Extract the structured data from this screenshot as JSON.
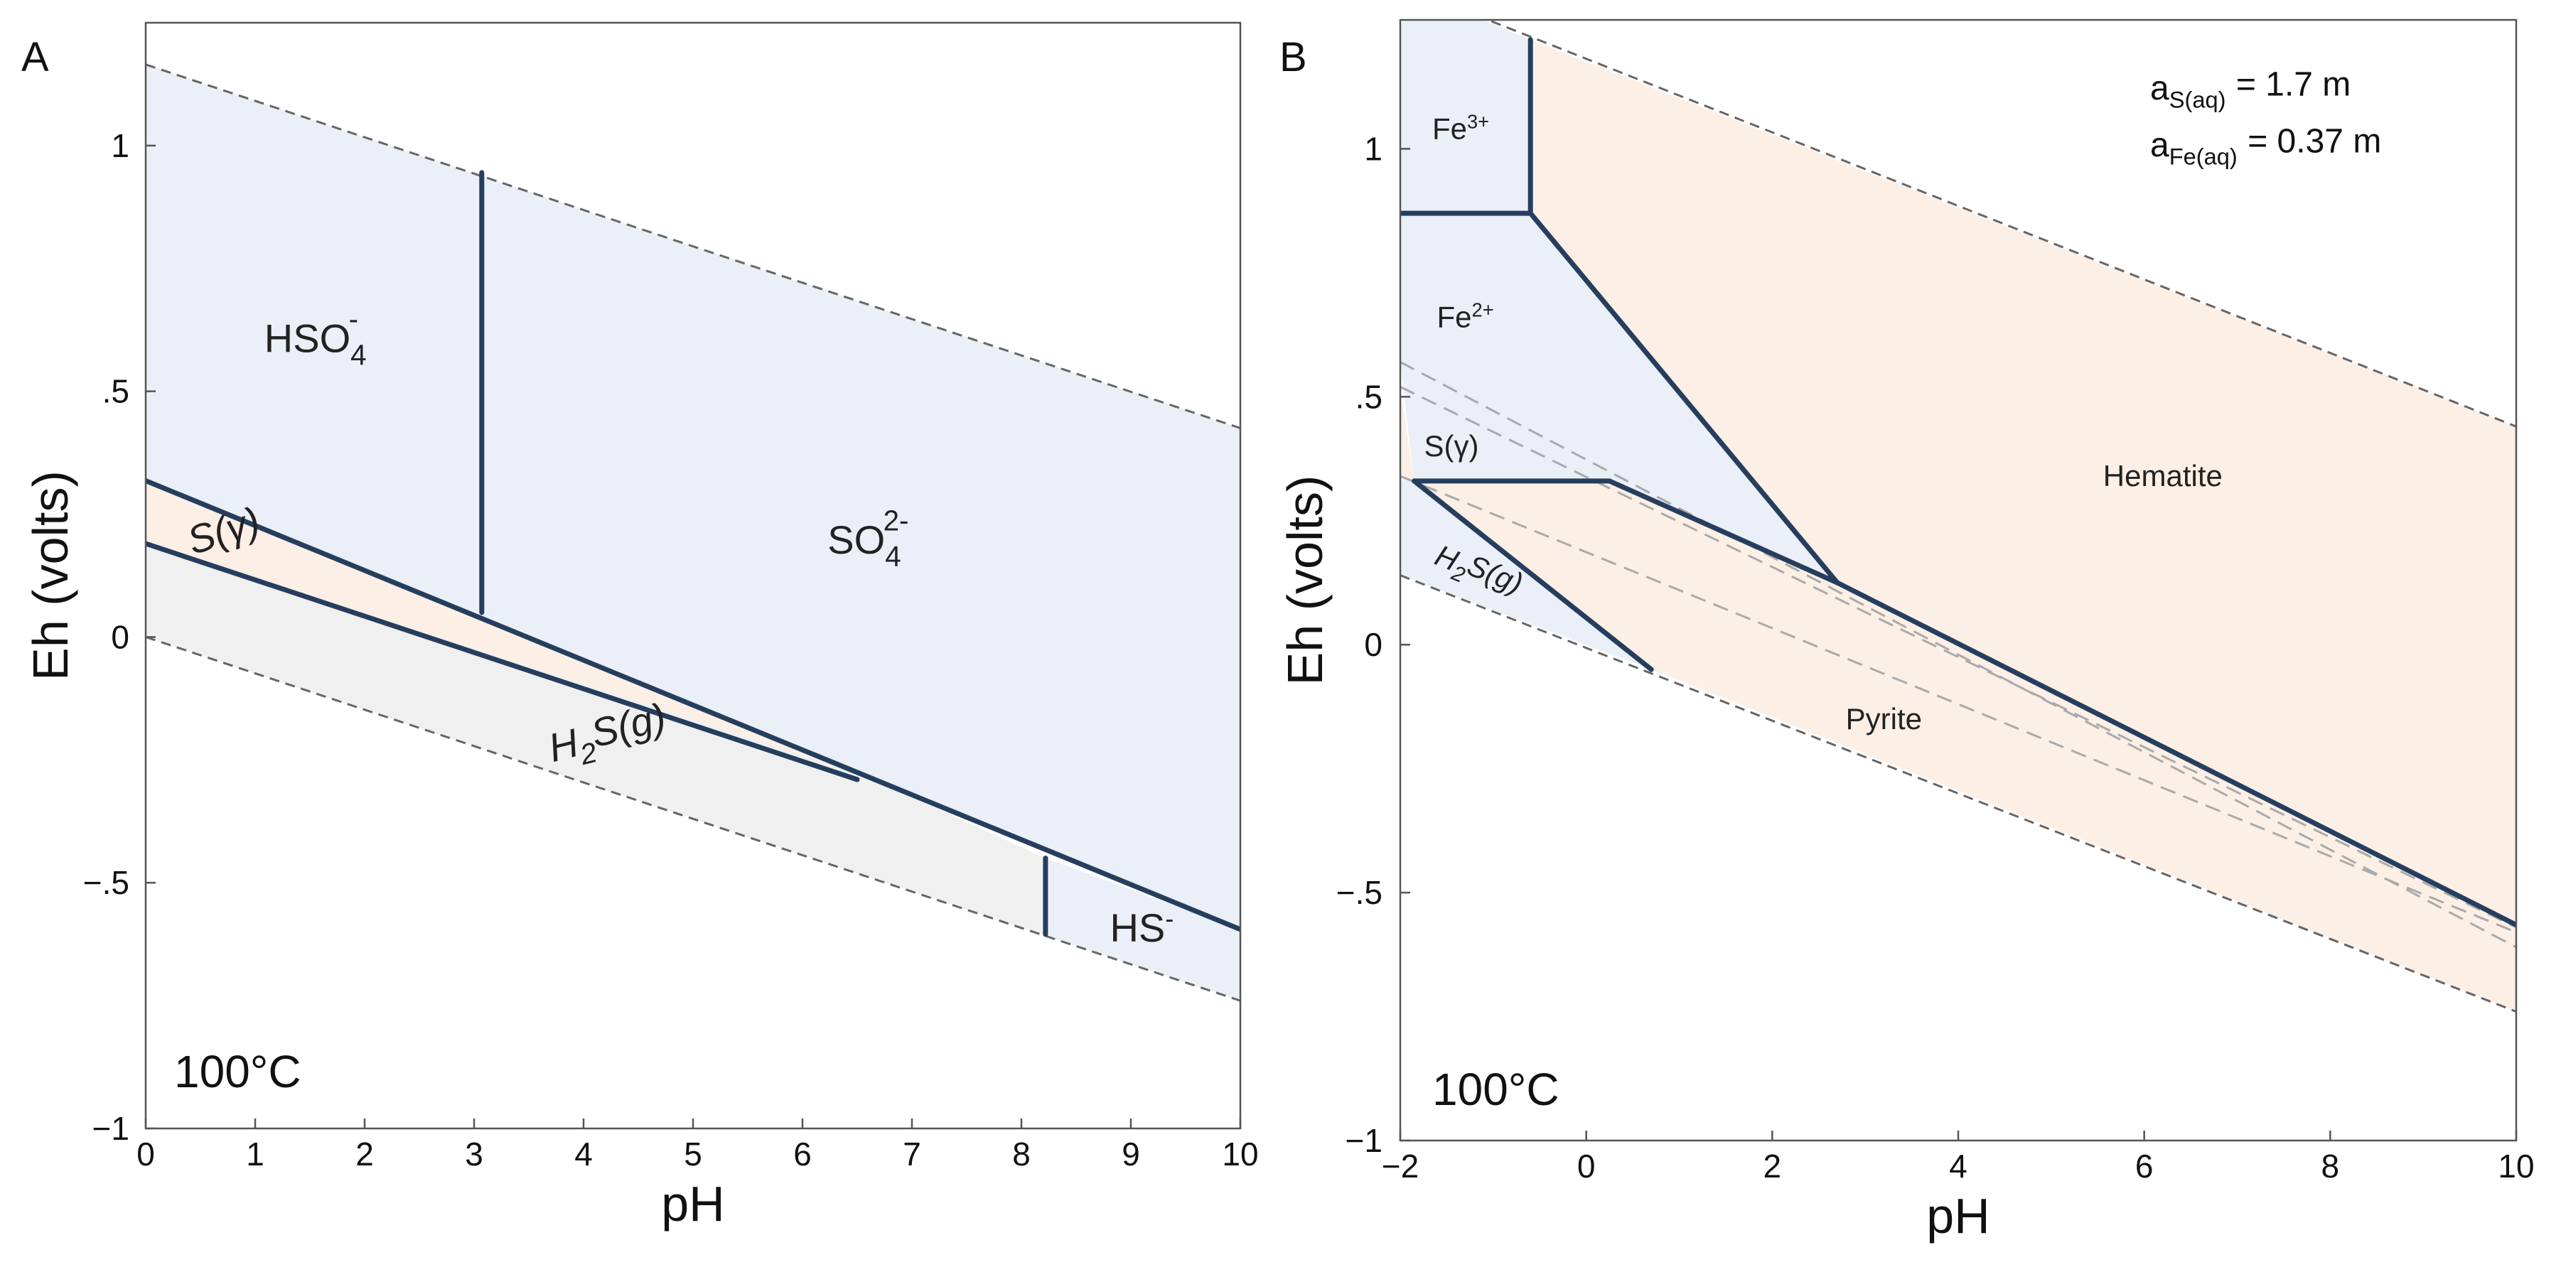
{
  "chart_data": [
    {
      "type": "area",
      "panel": "A",
      "xlabel": "pH",
      "ylabel": "Eh (volts)",
      "xlim": [
        0,
        10
      ],
      "ylim": [
        -1,
        1.25
      ],
      "xticks": [
        0,
        1,
        2,
        3,
        4,
        5,
        6,
        7,
        8,
        9,
        10
      ],
      "xtick_labels": [
        "0",
        "1",
        "2",
        "3",
        "4",
        "5",
        "6",
        "7",
        "8",
        "9",
        "10"
      ],
      "yticks": [
        -1,
        -0.5,
        0,
        0.5,
        1
      ],
      "ytick_labels": [
        "−1",
        "−.5",
        "0",
        ".5",
        "1"
      ],
      "temperature": "100°C",
      "colors": {
        "aqueous": "#eaeff8",
        "solid": "#fcefe6",
        "gas": "#f0f0f0",
        "boundary": "#263e5e",
        "water_limit": "#666666"
      },
      "water_limits": {
        "upper": [
          [
            0,
            1.165
          ],
          [
            10,
            0.425
          ]
        ],
        "lower": [
          [
            0,
            0.0
          ],
          [
            10,
            -0.74
          ]
        ]
      },
      "boundaries": [
        {
          "name": "HSO4-/SO4 2-",
          "points": [
            [
              3.07,
              0.05
            ],
            [
              3.07,
              0.945
            ]
          ]
        },
        {
          "name": "aqueous sulfate upper line",
          "points": [
            [
              0,
              0.318
            ],
            [
              10,
              -0.595
            ]
          ]
        },
        {
          "name": "S(gamma)/H2S(g)",
          "points": [
            [
              0,
              0.19
            ],
            [
              6.5,
              -0.29
            ]
          ]
        },
        {
          "name": "H2S(g)/HS-",
          "points": [
            [
              8.22,
              -0.45
            ],
            [
              8.22,
              -0.605
            ]
          ]
        }
      ],
      "regions": [
        {
          "name": "HSO4-",
          "label": "HSO",
          "sub": "4",
          "sup": "-",
          "at": [
            1.55,
            0.58
          ],
          "polygon": [
            [
              0,
              1.165
            ],
            [
              3.07,
              0.938
            ],
            [
              3.07,
              0.038
            ],
            [
              0,
              0.318
            ]
          ]
        },
        {
          "name": "SO4 2-",
          "label": "SO",
          "sub": "4",
          "sup": "2-",
          "at": [
            6.6,
            0.17
          ],
          "polygon": [
            [
              3.07,
              0.938
            ],
            [
              10,
              0.425
            ],
            [
              10,
              -0.595
            ],
            [
              3.07,
              0.038
            ]
          ]
        },
        {
          "name": "S(gamma)",
          "label": "S(γ)",
          "at": [
            0.75,
            0.19
          ],
          "italic": true,
          "rotate": -18,
          "polygon": [
            [
              0,
              0.318
            ],
            [
              6.5,
              -0.275
            ],
            [
              0,
              0.19
            ]
          ]
        },
        {
          "name": "H2S(g)",
          "label": "H",
          "sub": "2",
          "tail": "S(g)",
          "at": [
            4.25,
            -0.225
          ],
          "italic": true,
          "rotate": -14,
          "polygon": [
            [
              0,
              0.19
            ],
            [
              6.5,
              -0.275
            ],
            [
              8.22,
              -0.45
            ],
            [
              8.22,
              -0.608
            ],
            [
              0,
              0.0
            ]
          ]
        },
        {
          "name": "HS-",
          "label": "HS",
          "sup": "-",
          "at": [
            9.1,
            -0.62
          ],
          "polygon": [
            [
              8.22,
              -0.45
            ],
            [
              10,
              -0.595
            ],
            [
              10,
              -0.74
            ],
            [
              8.22,
              -0.608
            ]
          ]
        }
      ]
    },
    {
      "type": "area",
      "panel": "B",
      "xlabel": "pH",
      "ylabel": "Eh (volts)",
      "xlim": [
        -2,
        10
      ],
      "ylim": [
        -1,
        1.26
      ],
      "xticks": [
        -2,
        0,
        2,
        4,
        6,
        8,
        10
      ],
      "xtick_labels": [
        "−2",
        "0",
        "2",
        "4",
        "6",
        "8",
        "10"
      ],
      "yticks": [
        -1,
        -0.5,
        0,
        0.5,
        1
      ],
      "ytick_labels": [
        "−1",
        "−.5",
        "0",
        ".5",
        "1"
      ],
      "temperature": "100°C",
      "activities": {
        "sulfur": {
          "base": "a",
          "sub": "S(aq)",
          "value": "= 1.7 m"
        },
        "iron": {
          "base": "a",
          "sub": "Fe(aq)",
          "value": "= 0.37 m"
        }
      },
      "colors": {
        "aqueous": "#eaeff8",
        "solid": "#fcefe6",
        "boundary": "#263e5e",
        "water_limit": "#666666",
        "metastable": "#aaaaaa"
      },
      "water_limits": {
        "upper": [
          [
            -2,
            1.33
          ],
          [
            10,
            0.44
          ]
        ],
        "lower": [
          [
            -2,
            0.14
          ],
          [
            10,
            -0.74
          ]
        ]
      },
      "metastable_lines": [
        {
          "points": [
            [
              -2,
              0.57
            ],
            [
              10,
              -0.61
            ]
          ]
        },
        {
          "points": [
            [
              -2,
              0.52
            ],
            [
              10,
              -0.57
            ]
          ]
        },
        {
          "points": [
            [
              -2,
              0.34
            ],
            [
              10,
              -0.58
            ]
          ]
        }
      ],
      "boundaries": [
        {
          "name": "Fe3+/Hematite",
          "points": [
            [
              -0.6,
              1.22
            ],
            [
              -0.6,
              0.87
            ]
          ]
        },
        {
          "name": "Fe3+/Fe2+",
          "points": [
            [
              -2,
              0.87
            ],
            [
              -0.6,
              0.87
            ]
          ]
        },
        {
          "name": "Fe2+/Hematite",
          "points": [
            [
              -0.6,
              0.87
            ],
            [
              2.7,
              0.125
            ]
          ]
        },
        {
          "name": "Hematite/Pyrite",
          "points": [
            [
              2.7,
              0.125
            ],
            [
              10,
              -0.565
            ]
          ]
        },
        {
          "name": "Fe2+/Pyrite",
          "points": [
            [
              -1.85,
              0.33
            ],
            [
              0.25,
              0.33
            ],
            [
              2.7,
              0.125
            ]
          ]
        },
        {
          "name": "H2S(g)/Pyrite",
          "points": [
            [
              -1.85,
              0.33
            ],
            [
              0.7,
              -0.05
            ]
          ]
        }
      ],
      "regions": [
        {
          "name": "Fe3+",
          "label": "Fe",
          "sup": "3+",
          "at": [
            -1.35,
            1.02
          ],
          "polygon": [
            [
              -2,
              1.33
            ],
            [
              -0.6,
              1.22
            ],
            [
              -0.6,
              0.87
            ],
            [
              -2,
              0.87
            ]
          ]
        },
        {
          "name": "Fe2+",
          "label": "Fe",
          "sup": "2+",
          "at": [
            -1.3,
            0.64
          ],
          "polygon": [
            [
              -2,
              0.87
            ],
            [
              -0.6,
              0.87
            ],
            [
              2.7,
              0.125
            ],
            [
              0.25,
              0.33
            ],
            [
              -1.85,
              0.33
            ],
            [
              -2,
              0.57
            ]
          ]
        },
        {
          "name": "Hematite",
          "label": "Hematite",
          "at": [
            6.2,
            0.32
          ],
          "polygon": [
            [
              -0.6,
              1.22
            ],
            [
              10,
              0.44
            ],
            [
              10,
              -0.565
            ],
            [
              2.7,
              0.125
            ],
            [
              -0.6,
              0.87
            ]
          ]
        },
        {
          "name": "S(gamma)",
          "label": "S(γ)",
          "at": [
            -1.45,
            0.38
          ],
          "polygon": [
            [
              -2,
              0.52
            ],
            [
              -1.85,
              0.33
            ],
            [
              -2,
              0.34
            ]
          ]
        },
        {
          "name": "H2S(g)",
          "label": "H",
          "sub": "2",
          "tail": "S(g)",
          "at": [
            -1.2,
            0.13
          ],
          "italic": true,
          "rotate": 22,
          "polygon": [
            [
              -2,
              0.34
            ],
            [
              -1.85,
              0.33
            ],
            [
              0.7,
              -0.05
            ],
            [
              -2,
              0.14
            ]
          ]
        },
        {
          "name": "Pyrite",
          "label": "Pyrite",
          "at": [
            3.2,
            -0.17
          ],
          "polygon": [
            [
              -1.85,
              0.33
            ],
            [
              0.25,
              0.33
            ],
            [
              2.7,
              0.125
            ],
            [
              10,
              -0.565
            ],
            [
              10,
              -0.74
            ],
            [
              0.7,
              -0.05
            ]
          ]
        }
      ]
    }
  ]
}
